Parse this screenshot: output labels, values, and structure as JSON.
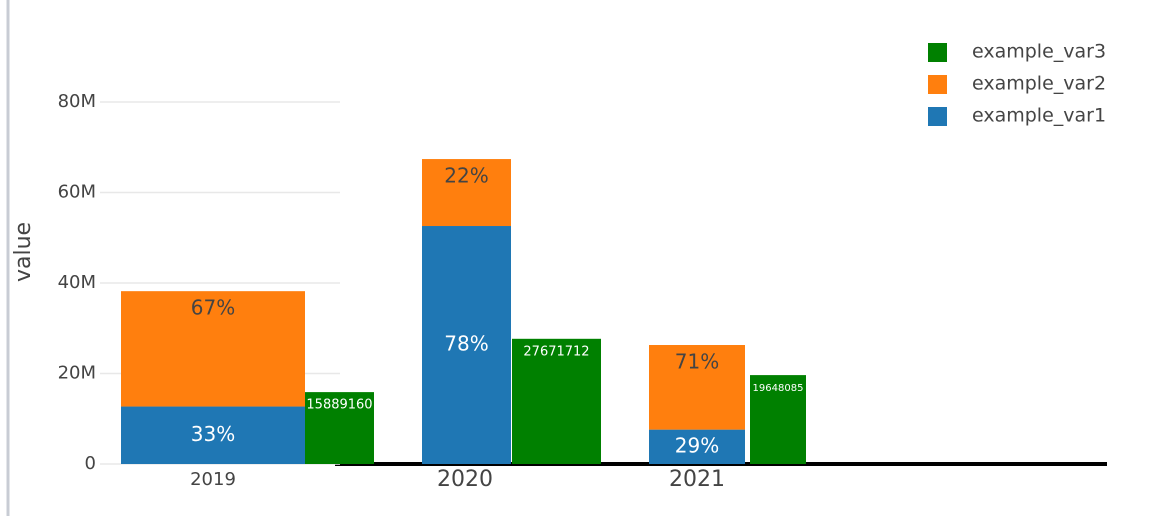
{
  "chart_data": {
    "type": "bar",
    "y_label": "value",
    "categories": [
      "2019",
      "2020",
      "2021"
    ],
    "series": [
      {
        "name": "example_var1",
        "color": "#1f77b4",
        "stack": true,
        "values": [
          12700000,
          52600000,
          7600000
        ],
        "labels": [
          "33%",
          "78%",
          "29%"
        ]
      },
      {
        "name": "example_var2",
        "color": "#ff7f0e",
        "stack": true,
        "values": [
          25500000,
          14800000,
          18700000
        ],
        "labels": [
          "67%",
          "22%",
          "71%"
        ]
      },
      {
        "name": "example_var3",
        "color": "#008000",
        "stack": false,
        "values": [
          15889160,
          27671712,
          19648085
        ]
      }
    ],
    "ylim": [
      0,
      90000000
    ],
    "yticks": [
      0,
      {
        "value": 20000000,
        "label": "20M"
      },
      {
        "value": 40000000,
        "label": "40M"
      },
      {
        "value": 60000000,
        "label": "60M"
      },
      {
        "value": 80000000,
        "label": "80M"
      }
    ],
    "grid": true,
    "legend": "top-right"
  }
}
